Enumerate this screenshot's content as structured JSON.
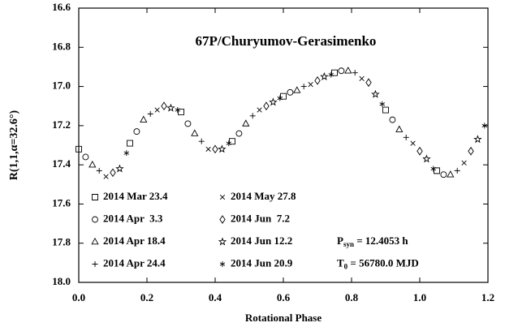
{
  "chart_data": {
    "type": "scatter",
    "title": "67P/Churyumov-Gerasimenko",
    "x_label": "Rotational Phase",
    "y_label": "R(1,1,α=32.6°)",
    "annotations": [
      {
        "symbol": "P",
        "sub": "syn",
        "text": " = 12.4053 h"
      },
      {
        "symbol": "T",
        "sub": "0",
        "text": " = 56780.0 MJD"
      }
    ],
    "xlim": [
      0,
      1.2
    ],
    "ylim": [
      18.0,
      16.6
    ],
    "y_inverted": true,
    "xticks": [
      {
        "value": 0,
        "label": "0.0"
      },
      0.2,
      0.4,
      0.6,
      0.8,
      {
        "value": 1,
        "label": "1.0"
      },
      1.2
    ],
    "yticks": [
      16.6,
      16.8,
      {
        "value": 17,
        "label": "17.0"
      },
      17.2,
      17.4,
      17.6,
      17.8,
      {
        "value": 18,
        "label": "18.0"
      }
    ],
    "legend": "lower left",
    "series": [
      {
        "name": "2014 Mar 23.4",
        "marker": "square",
        "color": "#000000",
        "x": [
          0,
          0.15,
          0.3,
          0.45,
          0.6,
          0.75,
          0.9,
          1.05
        ],
        "values": [
          17.32,
          17.29,
          17.13,
          17.28,
          17.05,
          16.93,
          17.12,
          17.43
        ]
      },
      {
        "name": "2014 Apr  3.3",
        "marker": "circle",
        "color": "#000000",
        "x": [
          0.02,
          0.17,
          0.32,
          0.47,
          0.62,
          0.77,
          0.92,
          1.07
        ],
        "values": [
          17.36,
          17.23,
          17.19,
          17.24,
          17.03,
          16.92,
          17.17,
          17.45
        ]
      },
      {
        "name": "2014 Apr 18.4",
        "marker": "triangle",
        "color": "#000000",
        "x": [
          0.04,
          0.19,
          0.34,
          0.49,
          0.64,
          0.79,
          0.94,
          1.09
        ],
        "values": [
          17.4,
          17.17,
          17.24,
          17.19,
          17.02,
          16.92,
          17.22,
          17.45
        ]
      },
      {
        "name": "2014 Apr 24.4",
        "marker": "plus",
        "color": "#000000",
        "x": [
          0.06,
          0.21,
          0.36,
          0.51,
          0.66,
          0.81,
          0.96,
          1.11
        ],
        "values": [
          17.43,
          17.14,
          17.28,
          17.15,
          17.0,
          16.93,
          17.26,
          17.43
        ]
      },
      {
        "name": "2014 May 27.8",
        "marker": "cross",
        "color": "#000000",
        "x": [
          0.08,
          0.23,
          0.38,
          0.53,
          0.68,
          0.83,
          0.98,
          1.13
        ],
        "values": [
          17.46,
          17.12,
          17.32,
          17.12,
          16.99,
          16.96,
          17.29,
          17.39
        ]
      },
      {
        "name": "2014 Jun  7.2",
        "marker": "diamond",
        "color": "#000000",
        "x": [
          0.1,
          0.25,
          0.4,
          0.55,
          0.7,
          0.85,
          1.0,
          1.15
        ],
        "values": [
          17.44,
          17.1,
          17.32,
          17.1,
          16.97,
          16.98,
          17.33,
          17.33
        ]
      },
      {
        "name": "2014 Jun 12.2",
        "marker": "star",
        "color": "#000000",
        "x": [
          0.12,
          0.27,
          0.42,
          0.57,
          0.72,
          0.87,
          1.02,
          1.17
        ],
        "values": [
          17.42,
          17.11,
          17.32,
          17.08,
          16.95,
          17.04,
          17.37,
          17.27
        ]
      },
      {
        "name": "2014 Jun 20.9",
        "marker": "asterisk",
        "color": "#000000",
        "x": [
          0.14,
          0.29,
          0.44,
          0.59,
          0.74,
          0.89,
          1.04,
          1.19
        ],
        "values": [
          17.34,
          17.12,
          17.29,
          17.06,
          16.94,
          17.09,
          17.42,
          17.2
        ]
      }
    ]
  }
}
